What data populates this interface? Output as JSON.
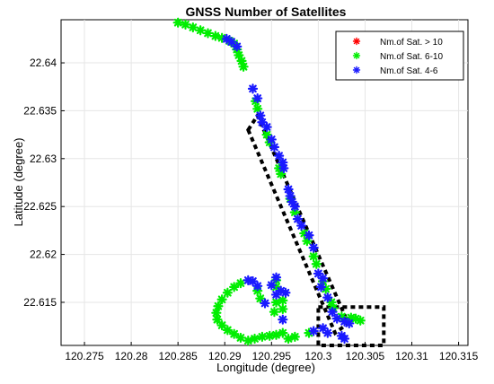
{
  "chart_data": {
    "type": "scatter",
    "title": "GNSS Number of Satellites",
    "xlabel": "Longitude (degree)",
    "ylabel": "Latitude (degree)",
    "xlim": [
      120.2725,
      120.316
    ],
    "ylim": [
      22.6105,
      22.6445
    ],
    "xticks": [
      "120.275",
      "120.28",
      "120.285",
      "120.29",
      "120.295",
      "120.3",
      "120.305",
      "120.31",
      "120.315"
    ],
    "yticks": [
      "22.615",
      "22.62",
      "22.625",
      "22.63",
      "22.635",
      "22.64"
    ],
    "grid": true,
    "legend_position": "top-right",
    "colors": {
      "gt10": "#ff0000",
      "s6to10": "#00ee00",
      "s4to6": "#1a1aff",
      "box": "#000000"
    },
    "series": [
      {
        "name": "Nm.of Sat. > 10",
        "marker": "asterisk",
        "points": []
      },
      {
        "name": "Nm.of Sat. 6-10",
        "marker": "asterisk",
        "points": [
          [
            120.285,
            22.6442
          ],
          [
            120.2858,
            22.644
          ],
          [
            120.2866,
            22.6437
          ],
          [
            120.2874,
            22.6434
          ],
          [
            120.2882,
            22.6431
          ],
          [
            120.289,
            22.6428
          ],
          [
            120.2897,
            22.6426
          ],
          [
            120.2905,
            22.6423
          ],
          [
            120.291,
            22.642
          ],
          [
            120.2913,
            22.6414
          ],
          [
            120.2915,
            22.6408
          ],
          [
            120.2918,
            22.6402
          ],
          [
            120.292,
            22.6396
          ],
          [
            120.2933,
            22.636
          ],
          [
            120.2935,
            22.6352
          ],
          [
            120.2945,
            22.6325
          ],
          [
            120.2948,
            22.6317
          ],
          [
            120.2958,
            22.629
          ],
          [
            120.296,
            22.6284
          ],
          [
            120.297,
            22.6258
          ],
          [
            120.2975,
            22.6244
          ],
          [
            120.2985,
            22.6222
          ],
          [
            120.2988,
            22.6214
          ],
          [
            120.2995,
            22.6198
          ],
          [
            120.2998,
            22.619
          ],
          [
            120.3005,
            22.6172
          ],
          [
            120.3008,
            22.6164
          ],
          [
            120.3014,
            22.615
          ],
          [
            120.3016,
            22.6144
          ],
          [
            120.3025,
            22.6135
          ],
          [
            120.3035,
            22.6134
          ],
          [
            120.304,
            22.6133
          ],
          [
            120.3045,
            22.6131
          ],
          [
            120.2917,
            22.617
          ],
          [
            120.291,
            22.6166
          ],
          [
            120.2903,
            22.616
          ],
          [
            120.2897,
            22.6153
          ],
          [
            120.2893,
            22.6146
          ],
          [
            120.2891,
            22.6139
          ],
          [
            120.2892,
            22.6132
          ],
          [
            120.2897,
            22.6126
          ],
          [
            120.2903,
            22.6121
          ],
          [
            120.291,
            22.6117
          ],
          [
            120.2917,
            22.6113
          ],
          [
            120.2925,
            22.611
          ],
          [
            120.2932,
            22.6112
          ],
          [
            120.294,
            22.6114
          ],
          [
            120.2948,
            22.6115
          ],
          [
            120.2955,
            22.6116
          ],
          [
            120.2962,
            22.6118
          ],
          [
            120.2935,
            22.6162
          ],
          [
            120.2938,
            22.6154
          ],
          [
            120.2955,
            22.6173
          ],
          [
            120.2955,
            22.6166
          ],
          [
            120.2955,
            22.615
          ],
          [
            120.2953,
            22.614
          ],
          [
            120.2962,
            22.6152
          ],
          [
            120.2962,
            22.6143
          ],
          [
            120.2968,
            22.6112
          ],
          [
            120.2975,
            22.6114
          ],
          [
            120.299,
            22.6118
          ]
        ]
      },
      {
        "name": "Nm.of Sat. 4-6",
        "marker": "asterisk",
        "points": [
          [
            120.2902,
            22.6425
          ],
          [
            120.2907,
            22.6422
          ],
          [
            120.2913,
            22.6417
          ],
          [
            120.293,
            22.6373
          ],
          [
            120.2935,
            22.6363
          ],
          [
            120.2938,
            22.6345
          ],
          [
            120.294,
            22.6338
          ],
          [
            120.2945,
            22.6333
          ],
          [
            120.295,
            22.632
          ],
          [
            120.2953,
            22.6312
          ],
          [
            120.2958,
            22.6303
          ],
          [
            120.2962,
            22.6296
          ],
          [
            120.2963,
            22.629
          ],
          [
            120.2968,
            22.6268
          ],
          [
            120.297,
            22.6261
          ],
          [
            120.2972,
            22.6255
          ],
          [
            120.2975,
            22.625
          ],
          [
            120.2978,
            22.6237
          ],
          [
            120.2982,
            22.623
          ],
          [
            120.299,
            22.622
          ],
          [
            120.2995,
            22.6207
          ],
          [
            120.3,
            22.618
          ],
          [
            120.3005,
            22.6175
          ],
          [
            120.3003,
            22.6166
          ],
          [
            120.301,
            22.6155
          ],
          [
            120.3015,
            22.614
          ],
          [
            120.302,
            22.6133
          ],
          [
            120.3028,
            22.613
          ],
          [
            120.3033,
            22.6128
          ],
          [
            120.3028,
            22.6112
          ],
          [
            120.3025,
            22.6115
          ],
          [
            120.2925,
            22.6173
          ],
          [
            120.293,
            22.6172
          ],
          [
            120.2935,
            22.6167
          ],
          [
            120.2943,
            22.6149
          ],
          [
            120.295,
            22.6168
          ],
          [
            120.2955,
            22.6176
          ],
          [
            120.2955,
            22.6158
          ],
          [
            120.296,
            22.6162
          ],
          [
            120.2965,
            22.616
          ],
          [
            120.2962,
            22.6132
          ],
          [
            120.2995,
            22.612
          ],
          [
            120.3005,
            22.6123
          ],
          [
            120.301,
            22.6118
          ]
        ]
      }
    ],
    "annotations": [
      {
        "shape": "dashed-rectangle-rotated",
        "corners": [
          [
            120.2925,
            22.633
          ],
          [
            120.2935,
            22.6345
          ],
          [
            120.3032,
            22.6128
          ],
          [
            120.3018,
            22.6118
          ]
        ]
      },
      {
        "shape": "dashed-rectangle",
        "corners": [
          [
            120.3,
            22.6145
          ],
          [
            120.307,
            22.6145
          ],
          [
            120.307,
            22.6105
          ],
          [
            120.3,
            22.6105
          ]
        ]
      }
    ]
  }
}
